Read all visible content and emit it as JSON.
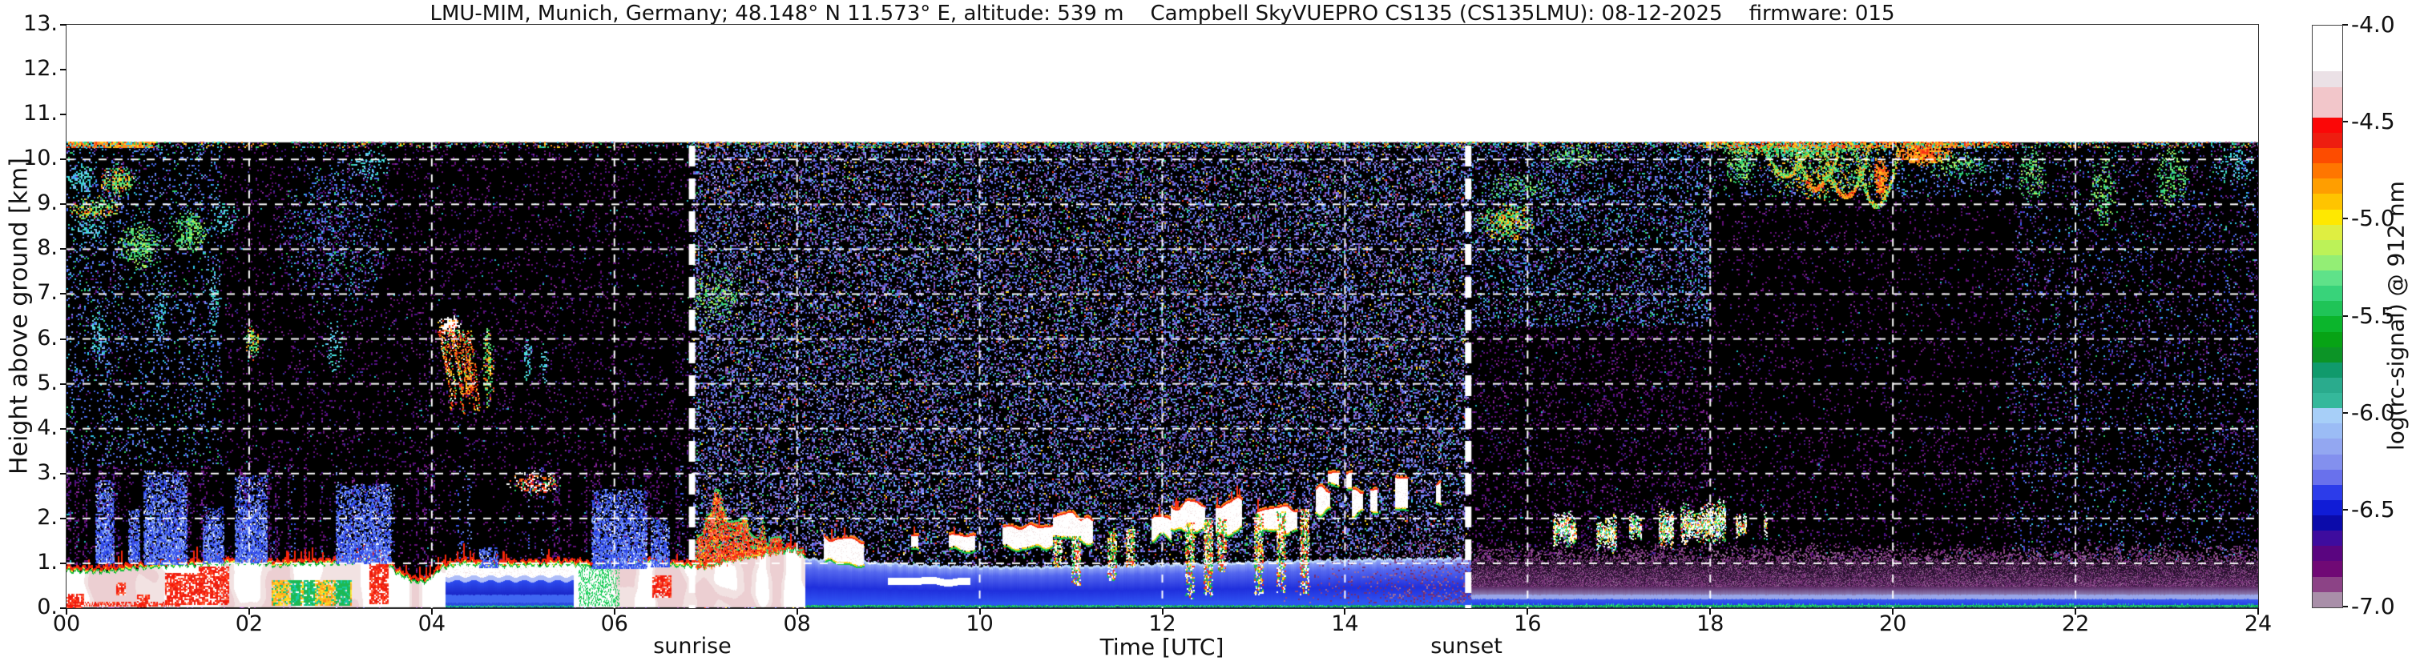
{
  "chart_data": {
    "type": "heatmap",
    "title": "LMU-MIM, Munich, Germany; 48.148° N 11.573° E, altitude: 539 m    Campbell SkyVUEPRO CS135 (CS135LMU): 08-12-2025    firmware: 015",
    "xlabel": "Time [UTC]",
    "ylabel": "Height above ground [km]",
    "sunrise_label": "sunrise",
    "sunset_label": "sunset",
    "x": {
      "min": 0,
      "max": 24,
      "ticks": [
        0,
        2,
        4,
        6,
        8,
        10,
        12,
        14,
        16,
        18,
        20,
        22,
        24
      ],
      "tick_labels": [
        "00",
        "02",
        "04",
        "06",
        "08",
        "10",
        "12",
        "14",
        "16",
        "18",
        "20",
        "22",
        "24"
      ]
    },
    "y": {
      "min": 0,
      "max": 13,
      "ticks": [
        0,
        1,
        2,
        3,
        4,
        5,
        6,
        7,
        8,
        9,
        10,
        11,
        12,
        13
      ],
      "tick_labels": [
        "0.",
        "1.",
        "2.",
        "3.",
        "4.",
        "5.",
        "6.",
        "7.",
        "8.",
        "9.",
        "10.",
        "11.",
        "12.",
        "13."
      ]
    },
    "data_top_km": 10.38,
    "sunrise_utc": 6.85,
    "sunset_utc": 15.35,
    "grid": {
      "h_km": [
        1,
        2,
        3,
        4,
        5,
        6,
        7,
        8,
        9,
        10
      ],
      "v_utc": [
        2,
        4,
        6,
        8,
        10,
        12,
        14,
        16,
        18,
        20,
        22
      ],
      "color": "#ffffff",
      "style": "dashed"
    },
    "colorbar": {
      "label": "log(rc-signal) @ 912 nm",
      "vmin": -7.0,
      "vmax": -4.0,
      "tick_values": [
        -4.0,
        -4.5,
        -5.0,
        -5.5,
        -6.0,
        -6.5,
        -7.0
      ],
      "tick_labels": [
        "-4.0",
        "-4.5",
        "-5.0",
        "-5.5",
        "-6.0",
        "-6.5",
        "-7.0"
      ],
      "colors": [
        "#ffffff",
        "#ffffff",
        "#ffffff",
        "#ebe1e6",
        "#f2c6ca",
        "#f2c6ca",
        "#fb0707",
        "#ee1d10",
        "#fd4c00",
        "#ff7600",
        "#ff9e00",
        "#ffc400",
        "#ffe800",
        "#dfee41",
        "#bcf258",
        "#93ee75",
        "#5fe289",
        "#38d37a",
        "#1fc457",
        "#0bb52c",
        "#07a315",
        "#0c9426",
        "#109a6c",
        "#2aab8d",
        "#35b89b",
        "#a7cff8",
        "#9bbcf5",
        "#93a7f1",
        "#8390ee",
        "#6971ec",
        "#2c3cea",
        "#101cd6",
        "#0b0baa",
        "#3e0c9e",
        "#5a0580",
        "#700975",
        "#8c4386",
        "#a98fa9"
      ]
    },
    "render_seed": 42,
    "features": {
      "low_layer_top_profile": [
        [
          0,
          0.8
        ],
        [
          0.4,
          0.78
        ],
        [
          0.8,
          0.88
        ],
        [
          1.2,
          0.92
        ],
        [
          1.6,
          0.96
        ],
        [
          2.0,
          1.0
        ],
        [
          2.3,
          0.92
        ],
        [
          2.6,
          0.96
        ],
        [
          3.0,
          0.98
        ],
        [
          3.3,
          1.06
        ],
        [
          3.45,
          1.14
        ],
        [
          3.6,
          0.78
        ],
        [
          3.78,
          0.58
        ],
        [
          3.95,
          0.56
        ],
        [
          4.1,
          0.88
        ],
        [
          4.35,
          0.97
        ],
        [
          4.7,
          0.92
        ],
        [
          5.1,
          0.94
        ],
        [
          5.5,
          0.96
        ],
        [
          5.8,
          0.9
        ],
        [
          6.1,
          0.96
        ],
        [
          6.4,
          1.0
        ],
        [
          6.7,
          0.92
        ],
        [
          7.0,
          0.9
        ],
        [
          7.3,
          1.05
        ],
        [
          7.6,
          1.15
        ],
        [
          7.95,
          1.28
        ],
        [
          8.08,
          1.12
        ]
      ],
      "blue_sublayer": {
        "t": [
          4.15,
          5.55
        ],
        "cap_base": 0.7
      },
      "day_layer_top_profile": [
        [
          8.05,
          1.12
        ],
        [
          8.5,
          1.05
        ],
        [
          9.0,
          1.0
        ],
        [
          9.6,
          0.94
        ],
        [
          10.5,
          0.92
        ],
        [
          11.5,
          0.95
        ],
        [
          12.5,
          1.0
        ],
        [
          13.5,
          1.06
        ],
        [
          14.5,
          1.1
        ],
        [
          15.38,
          1.12
        ]
      ],
      "night_layer_top": 1.05,
      "red_patches": [
        [
          0.0,
          0.18,
          0.0,
          0.32
        ],
        [
          0.55,
          0.65,
          0.28,
          0.56
        ],
        [
          0.78,
          0.92,
          0.05,
          0.3
        ],
        [
          1.08,
          1.45,
          0.1,
          0.78
        ],
        [
          1.45,
          1.78,
          0.08,
          0.92
        ],
        [
          3.32,
          3.52,
          0.1,
          1.3
        ],
        [
          6.42,
          6.62,
          0.25,
          0.72
        ]
      ],
      "amber_patch": [
        2.25,
        3.12,
        0.08,
        0.62
      ],
      "green_columns_t": [
        5.6,
        6.05
      ],
      "red_bottom_band_t": [
        0,
        1.25
      ],
      "sunrise_plume_profile": [
        [
          6.88,
          1.5
        ],
        [
          7.0,
          2.3
        ],
        [
          7.1,
          2.68
        ],
        [
          7.25,
          2.5
        ],
        [
          7.4,
          2.3
        ],
        [
          7.55,
          2.05
        ],
        [
          7.7,
          1.85
        ],
        [
          7.85,
          1.6
        ],
        [
          8.02,
          1.35
        ]
      ],
      "precip_columns": [
        [
          0.32,
          0.52,
          1.0,
          2.85
        ],
        [
          0.68,
          0.8,
          1.0,
          2.2
        ],
        [
          0.85,
          1.32,
          0.95,
          3.05
        ],
        [
          1.5,
          1.72,
          1.0,
          2.25
        ],
        [
          1.85,
          2.2,
          1.0,
          2.95
        ],
        [
          2.95,
          3.55,
          1.0,
          2.75
        ],
        [
          4.52,
          4.72,
          0.9,
          1.35
        ],
        [
          5.75,
          6.35,
          0.9,
          2.65
        ],
        [
          6.4,
          6.6,
          0.9,
          2.0
        ]
      ],
      "high_features": [
        {
          "t": [
            0.0,
            0.35
          ],
          "h": [
            9.25,
            9.95
          ],
          "style": "cyan",
          "d": 0.5
        },
        {
          "t": [
            0.35,
            0.78
          ],
          "h": [
            9.15,
            9.95
          ],
          "style": "warmgreen",
          "d": 0.55
        },
        {
          "t": [
            0.0,
            0.6
          ],
          "h": [
            8.65,
            9.2
          ],
          "style": "warmgreen",
          "d": 0.6
        },
        {
          "t": [
            0.0,
            0.45
          ],
          "h": [
            8.25,
            8.7
          ],
          "style": "cyan",
          "d": 0.45
        },
        {
          "t": [
            0.55,
            1.05
          ],
          "h": [
            7.55,
            8.6
          ],
          "style": "green",
          "d": 0.55
        },
        {
          "t": [
            1.15,
            1.55
          ],
          "h": [
            7.9,
            8.95
          ],
          "style": "green",
          "d": 0.5
        },
        {
          "t": [
            1.55,
            1.9
          ],
          "h": [
            8.3,
            9.2
          ],
          "style": "cyan",
          "d": 0.3
        },
        {
          "t": [
            0.25,
            0.45
          ],
          "h": [
            5.3,
            6.8
          ],
          "style": "cyan",
          "d": 0.35
        },
        {
          "t": [
            0.95,
            1.08
          ],
          "h": [
            5.8,
            7.3
          ],
          "style": "cyan",
          "d": 0.35
        },
        {
          "t": [
            1.55,
            1.67
          ],
          "h": [
            5.9,
            7.6
          ],
          "style": "cyan",
          "d": 0.35
        },
        {
          "t": [
            1.95,
            2.12
          ],
          "h": [
            5.5,
            6.35
          ],
          "style": "warmgreen",
          "d": 0.45
        },
        {
          "t": [
            2.8,
            3.05
          ],
          "h": [
            5.2,
            6.4
          ],
          "style": "cyan",
          "d": 0.25
        },
        {
          "t": [
            2.3,
            3.6
          ],
          "h": [
            6.5,
            10.3
          ],
          "style": "bluespeck",
          "d": 0.2
        },
        {
          "t": [
            3.1,
            3.55
          ],
          "h": [
            9.55,
            10.25
          ],
          "style": "cyan",
          "d": 0.3
        },
        {
          "t": [
            4.55,
            4.68
          ],
          "h": [
            4.4,
            6.3
          ],
          "style": "warmgreen",
          "d": 0.6
        },
        {
          "t": [
            5.0,
            5.1
          ],
          "h": [
            5.0,
            6.05
          ],
          "style": "cyan",
          "d": 0.4
        },
        {
          "t": [
            5.18,
            5.28
          ],
          "h": [
            5.0,
            5.9
          ],
          "style": "cyan",
          "d": 0.35
        },
        {
          "t": [
            4.8,
            5.45
          ],
          "h": [
            2.5,
            3.05
          ],
          "style": "whitered",
          "d": 0.55
        },
        {
          "t": [
            6.75,
            7.45
          ],
          "h": [
            6.3,
            7.6
          ],
          "style": "green",
          "d": 0.28
        },
        {
          "t": [
            15.45,
            16.08
          ],
          "h": [
            8.15,
            9.05
          ],
          "style": "warmgreen",
          "d": 0.6
        },
        {
          "t": [
            15.5,
            16.3
          ],
          "h": [
            9.0,
            9.75
          ],
          "style": "green",
          "d": 0.25
        },
        {
          "t": [
            16.2,
            16.8
          ],
          "h": [
            9.8,
            10.38
          ],
          "style": "green",
          "d": 0.3
        },
        {
          "t": [
            18.15,
            18.5
          ],
          "h": [
            9.4,
            10.38
          ],
          "style": "green",
          "d": 0.45
        },
        {
          "t": [
            18.55,
            19.95
          ],
          "h": [
            9.05,
            10.38
          ],
          "style": "cirrus",
          "d": 0.55
        },
        {
          "t": [
            18.0,
            19.95
          ],
          "h": [
            10.05,
            10.4
          ],
          "style": "warmgreen",
          "d": 0.7
        },
        {
          "t": [
            19.78,
            19.95
          ],
          "h": [
            9.1,
            10.1
          ],
          "style": "warm",
          "d": 0.8
        },
        {
          "t": [
            20.0,
            20.65
          ],
          "h": [
            9.85,
            10.4
          ],
          "style": "warm",
          "d": 0.8
        },
        {
          "t": [
            20.3,
            21.05
          ],
          "h": [
            9.55,
            10.2
          ],
          "style": "green",
          "d": 0.3
        },
        {
          "t": [
            21.35,
            21.68
          ],
          "h": [
            8.95,
            10.35
          ],
          "style": "green",
          "d": 0.35
        },
        {
          "t": [
            22.15,
            22.45
          ],
          "h": [
            8.45,
            10.3
          ],
          "style": "green",
          "d": 0.3
        },
        {
          "t": [
            22.85,
            23.25
          ],
          "h": [
            8.85,
            10.35
          ],
          "style": "green",
          "d": 0.35
        },
        {
          "t": [
            23.5,
            23.98
          ],
          "h": [
            9.4,
            10.35
          ],
          "style": "cyan",
          "d": 0.25
        },
        {
          "t": [
            4.05,
            4.45
          ],
          "h": [
            4.4,
            6.55
          ],
          "style": "altocloud",
          "d": 0.8
        }
      ],
      "mid_clouds": [
        {
          "t": [
            8.3,
            8.8
          ],
          "h": [
            0.95,
            1.5
          ],
          "style": "ragged"
        },
        {
          "t": [
            9.0,
            9.9
          ],
          "h": [
            0.5,
            0.66
          ],
          "style": "flatbar"
        },
        {
          "t": [
            9.25,
            9.95
          ],
          "h": [
            1.3,
            1.62
          ],
          "style": "scattered"
        },
        {
          "t": [
            10.25,
            10.8
          ],
          "h": [
            1.25,
            1.8
          ],
          "style": "ragged"
        },
        {
          "t": [
            10.8,
            12.1
          ],
          "h": [
            1.45,
            2.0
          ],
          "style": "broken"
        },
        {
          "t": [
            12.1,
            13.62
          ],
          "h": [
            1.7,
            2.3
          ],
          "style": "ragged"
        },
        {
          "t": [
            13.62,
            14.35
          ],
          "h": [
            2.05,
            2.6
          ],
          "style": "scattered"
        },
        {
          "t": [
            13.8,
            14.08
          ],
          "h": [
            2.7,
            3.0
          ],
          "style": "scattered"
        },
        {
          "t": [
            14.35,
            15.05
          ],
          "h": [
            2.25,
            2.85
          ],
          "style": "scattered"
        },
        {
          "t": [
            16.28,
            17.02
          ],
          "h": [
            1.45,
            1.95
          ],
          "style": "clumpy"
        },
        {
          "t": [
            17.12,
            17.6
          ],
          "h": [
            1.5,
            2.1
          ],
          "style": "clumpy"
        },
        {
          "t": [
            17.68,
            18.2
          ],
          "h": [
            1.55,
            2.2
          ],
          "style": "clumpy"
        },
        {
          "t": [
            18.28,
            18.62
          ],
          "h": [
            1.65,
            2.05
          ],
          "style": "clumpy"
        }
      ],
      "fall_streaks": [
        [
          10.85,
          1.5,
          0.9
        ],
        [
          11.05,
          1.6,
          0.5
        ],
        [
          11.45,
          1.7,
          0.6
        ],
        [
          11.65,
          1.75,
          0.9
        ],
        [
          12.3,
          1.9,
          0.2
        ],
        [
          12.5,
          1.95,
          0.25
        ],
        [
          12.65,
          2.0,
          0.8
        ],
        [
          13.05,
          2.1,
          0.3
        ],
        [
          13.3,
          2.15,
          0.35
        ],
        [
          13.55,
          2.2,
          0.3
        ]
      ]
    }
  }
}
